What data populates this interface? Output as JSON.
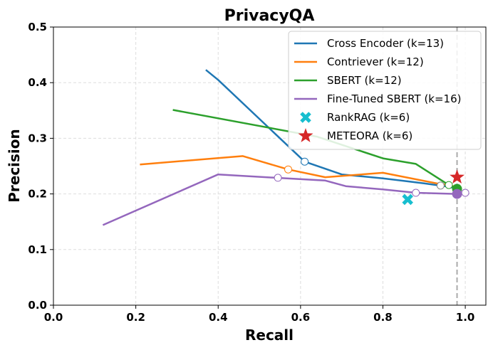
{
  "colors": {
    "cross_encoder": "#1f77b4",
    "contriever": "#ff7f0e",
    "sbert": "#2ca02c",
    "fine_tuned_sbert": "#9467bd",
    "rankrag": "#17becf",
    "meteora": "#d62728",
    "grid": "#dddddd",
    "vline": "#aaaaaa"
  },
  "chart_data": {
    "type": "line",
    "title": "PrivacyQA",
    "xlabel": "Recall",
    "ylabel": "Precision",
    "xlim": [
      0.0,
      1.05
    ],
    "ylim": [
      0.0,
      0.5
    ],
    "xticks": [
      "0.0",
      "0.2",
      "0.4",
      "0.6",
      "0.8",
      "1.0"
    ],
    "yticks": [
      "0.0",
      "0.1",
      "0.2",
      "0.3",
      "0.4",
      "0.5"
    ],
    "grid": true,
    "legend_position": "top-right",
    "vertical_reference_x": 0.98,
    "series": [
      {
        "name": "Cross Encoder (k=13)",
        "color_key": "cross_encoder",
        "points": [
          [
            0.37,
            0.423
          ],
          [
            0.4,
            0.405
          ],
          [
            0.61,
            0.258
          ],
          [
            0.7,
            0.235
          ],
          [
            0.8,
            0.228
          ],
          [
            0.9,
            0.219
          ],
          [
            0.95,
            0.214
          ],
          [
            0.98,
            0.21
          ]
        ],
        "marker_point": [
          0.61,
          0.258
        ]
      },
      {
        "name": "Contriever (k=12)",
        "color_key": "contriever",
        "points": [
          [
            0.21,
            0.253
          ],
          [
            0.46,
            0.268
          ],
          [
            0.57,
            0.244
          ],
          [
            0.66,
            0.23
          ],
          [
            0.8,
            0.238
          ],
          [
            0.93,
            0.219
          ],
          [
            0.96,
            0.216
          ],
          [
            0.98,
            0.212
          ]
        ],
        "marker_point": [
          0.57,
          0.244
        ]
      },
      {
        "name": "SBERT (k=12)",
        "color_key": "sbert",
        "points": [
          [
            0.29,
            0.351
          ],
          [
            0.64,
            0.303
          ],
          [
            0.8,
            0.264
          ],
          [
            0.88,
            0.254
          ],
          [
            0.96,
            0.216
          ],
          [
            0.98,
            0.21
          ]
        ],
        "marker_point": [
          0.96,
          0.216
        ]
      },
      {
        "name": "Fine-Tuned SBERT (k=16)",
        "color_key": "fine_tuned_sbert",
        "points": [
          [
            0.12,
            0.144
          ],
          [
            0.4,
            0.235
          ],
          [
            0.54,
            0.229
          ],
          [
            0.66,
            0.224
          ],
          [
            0.71,
            0.214
          ],
          [
            0.8,
            0.208
          ],
          [
            0.88,
            0.202
          ],
          [
            0.98,
            0.2
          ],
          [
            1.0,
            0.202
          ]
        ],
        "marker_point": [
          0.88,
          0.202
        ],
        "extra_marker_points": [
          [
            0.545,
            0.229
          ],
          [
            1.0,
            0.202
          ]
        ]
      }
    ],
    "extra_hollow_markers": [
      [
        0.94,
        0.215
      ]
    ],
    "endpoints": [
      {
        "color_key": "sbert",
        "point": [
          0.98,
          0.209
        ]
      },
      {
        "color_key": "fine_tuned_sbert",
        "point": [
          0.98,
          0.2
        ]
      }
    ],
    "single_points": [
      {
        "name": "RankRAG (k=6)",
        "color_key": "rankrag",
        "marker": "x",
        "point": [
          0.86,
          0.19
        ]
      },
      {
        "name": "METEORA (k=6)",
        "color_key": "meteora",
        "marker": "star",
        "point": [
          0.98,
          0.23
        ]
      }
    ]
  }
}
